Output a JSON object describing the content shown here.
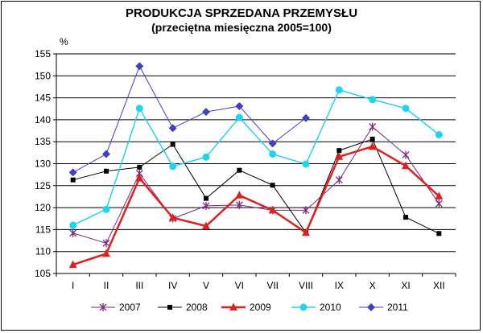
{
  "chart_data": {
    "type": "line",
    "title": "PRODUKCJA SPRZEDANA PRZEMYSŁU",
    "subtitle": "(przeciętna miesięczna 2005=100)",
    "ylabel": "%",
    "xlabel": "",
    "ylim": [
      105,
      155
    ],
    "yticks": [
      105,
      110,
      115,
      120,
      125,
      130,
      135,
      140,
      145,
      150,
      155
    ],
    "grid": true,
    "legend_position": "bottom",
    "categories": [
      "I",
      "II",
      "III",
      "IV",
      "V",
      "VI",
      "VII",
      "VIII",
      "IX",
      "X",
      "XI",
      "XII"
    ],
    "series": [
      {
        "name": "2007",
        "color": "#7B2A7B",
        "marker": "asterisk",
        "width": 1,
        "values": [
          114.2,
          111.9,
          127.8,
          117.5,
          120.4,
          120.6,
          119.4,
          119.4,
          126.3,
          138.4,
          132.0,
          120.9
        ]
      },
      {
        "name": "2008",
        "color": "#000000",
        "marker": "square",
        "width": 1,
        "values": [
          126.3,
          128.3,
          129.2,
          134.4,
          122.1,
          128.5,
          125.1,
          114.3,
          133.0,
          135.6,
          117.8,
          114.1
        ]
      },
      {
        "name": "2009",
        "color": "#E02020",
        "marker": "triangle",
        "width": 2.5,
        "values": [
          107.0,
          109.5,
          126.7,
          117.7,
          115.8,
          122.8,
          119.4,
          114.3,
          131.6,
          133.9,
          129.5,
          122.6
        ]
      },
      {
        "name": "2010",
        "color": "#22D3EE",
        "marker": "circle",
        "width": 1.5,
        "values": [
          116.0,
          119.6,
          142.6,
          129.4,
          131.5,
          140.5,
          132.2,
          129.9,
          146.8,
          144.6,
          142.6,
          136.6
        ]
      },
      {
        "name": "2011",
        "color": "#4040C0",
        "marker": "diamond",
        "width": 1,
        "values": [
          128.0,
          132.2,
          152.2,
          138.1,
          141.8,
          143.1,
          134.6,
          140.4,
          null,
          null,
          null,
          null
        ]
      }
    ]
  }
}
